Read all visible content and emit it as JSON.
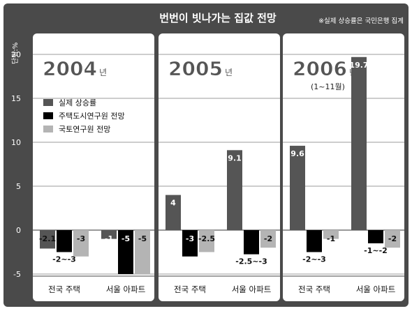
{
  "title": "번번이 빗나가는 집값 전망",
  "source_note": "※실제 상승률은 국민은행 집계",
  "unit_label": "단위:%",
  "legend": [
    {
      "label": "실제 상승률",
      "color": "#555555"
    },
    {
      "label": "주택도시연구원 전망",
      "color": "#000000"
    },
    {
      "label": "국토연구원 전망",
      "color": "#b4b4b4"
    }
  ],
  "y_ticks": [
    "20",
    "15",
    "10",
    "5",
    "0",
    "-5"
  ],
  "colors": {
    "frame": "#4a4a4a",
    "panel": "#ffffff",
    "grid": "#7a7a7a",
    "actual": "#555555",
    "khuri": "#000000",
    "krihs": "#b4b4b4"
  },
  "chart_data": {
    "type": "bar",
    "title": "번번이 빗나가는 집값 전망",
    "ylabel": "단위:%",
    "ylim": [
      -5,
      20
    ],
    "grid": true,
    "legend_position": "top-left of first panel",
    "panels": [
      {
        "year_number": "2004",
        "year_suffix": "년",
        "period": "",
        "categories": [
          "전국 주택",
          "서울 아파트"
        ],
        "series": [
          {
            "name": "실제 상승률",
            "values": [
              -2.1,
              -1
            ],
            "labels": [
              "-2.1",
              "-1"
            ]
          },
          {
            "name": "주택도시연구원 전망",
            "values": [
              -2.5,
              -5
            ],
            "labels": [
              "-2~-3",
              "-5"
            ]
          },
          {
            "name": "국토연구원 전망",
            "values": [
              -3,
              -5
            ],
            "labels": [
              "-3",
              "-5"
            ]
          }
        ]
      },
      {
        "year_number": "2005",
        "year_suffix": "년",
        "period": "",
        "categories": [
          "전국 주택",
          "서울 아파트"
        ],
        "series": [
          {
            "name": "실제 상승률",
            "values": [
              4,
              9.1
            ],
            "labels": [
              "4",
              "9.1"
            ]
          },
          {
            "name": "주택도시연구원 전망",
            "values": [
              -3,
              -2.75
            ],
            "labels": [
              "-3",
              "-2.5~-3"
            ]
          },
          {
            "name": "국토연구원 전망",
            "values": [
              -2.5,
              -2
            ],
            "labels": [
              "-2.5",
              "-2"
            ]
          }
        ]
      },
      {
        "year_number": "2006",
        "year_suffix": "년",
        "period": "(1~11월)",
        "categories": [
          "전국 주택",
          "서울 아파트"
        ],
        "series": [
          {
            "name": "실제 상승률",
            "values": [
              9.6,
              19.7
            ],
            "labels": [
              "9.6",
              "19.7"
            ]
          },
          {
            "name": "주택도시연구원 전망",
            "values": [
              -2.5,
              -1.5
            ],
            "labels": [
              "-2~-3",
              "-1~-2"
            ]
          },
          {
            "name": "국토연구원 전망",
            "values": [
              -1,
              -2
            ],
            "labels": [
              "-1",
              "-2"
            ]
          }
        ]
      }
    ]
  }
}
